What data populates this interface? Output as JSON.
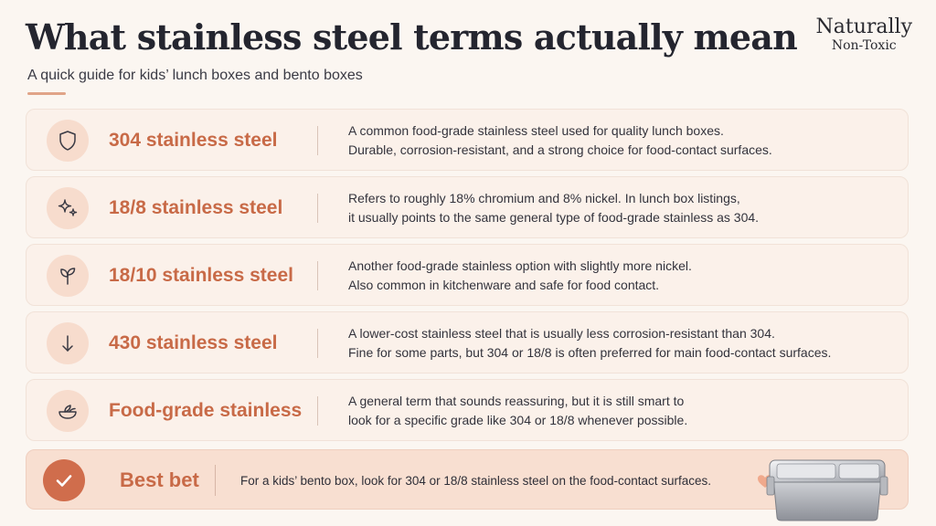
{
  "header": {
    "title": "What stainless steel terms actually mean",
    "subtitle": "A quick guide for kids’ lunch boxes and bento boxes",
    "brand_top": "Naturally",
    "brand_bottom": "Non-Toxic"
  },
  "terms": [
    {
      "icon": "shield-icon",
      "term": "304 stainless steel",
      "lines": [
        "A common food-grade stainless steel used for quality lunch boxes.",
        "Durable, corrosion-resistant, and a strong choice for food-contact surfaces."
      ]
    },
    {
      "icon": "sparkle-icon",
      "term": "18/8 stainless steel",
      "lines": [
        "Refers to roughly 18% chromium and 8% nickel. In lunch box listings,",
        "it usually points to the same general type of food-grade stainless as 304."
      ]
    },
    {
      "icon": "leaf-icon",
      "term": "18/10 stainless steel",
      "lines": [
        "Another food-grade stainless option with slightly more nickel.",
        "Also common in kitchenware and safe for food contact."
      ]
    },
    {
      "icon": "arrow-down-icon",
      "term": "430 stainless steel",
      "lines": [
        "A lower-cost stainless steel that is usually less corrosion-resistant than 304.",
        "Fine for some parts, but 304 or 18/8 is often preferred for main food-contact surfaces."
      ]
    },
    {
      "icon": "bowl-icon",
      "term": "Food-grade stainless",
      "lines": [
        "A general term that sounds reassuring, but it is still smart to",
        "look for a specific grade like 304 or 18/8 whenever possible."
      ]
    }
  ],
  "best_bet": {
    "label": "Best bet",
    "text": "For a kids’ bento box, look for 304 or 18/8 stainless steel on the food-contact surfaces."
  },
  "colors": {
    "accent": "#c86a47",
    "background": "#fbf6f1",
    "row": "#fbf1ea",
    "icon_bg": "#f7dccd",
    "best_bg": "#f8dfd1"
  }
}
